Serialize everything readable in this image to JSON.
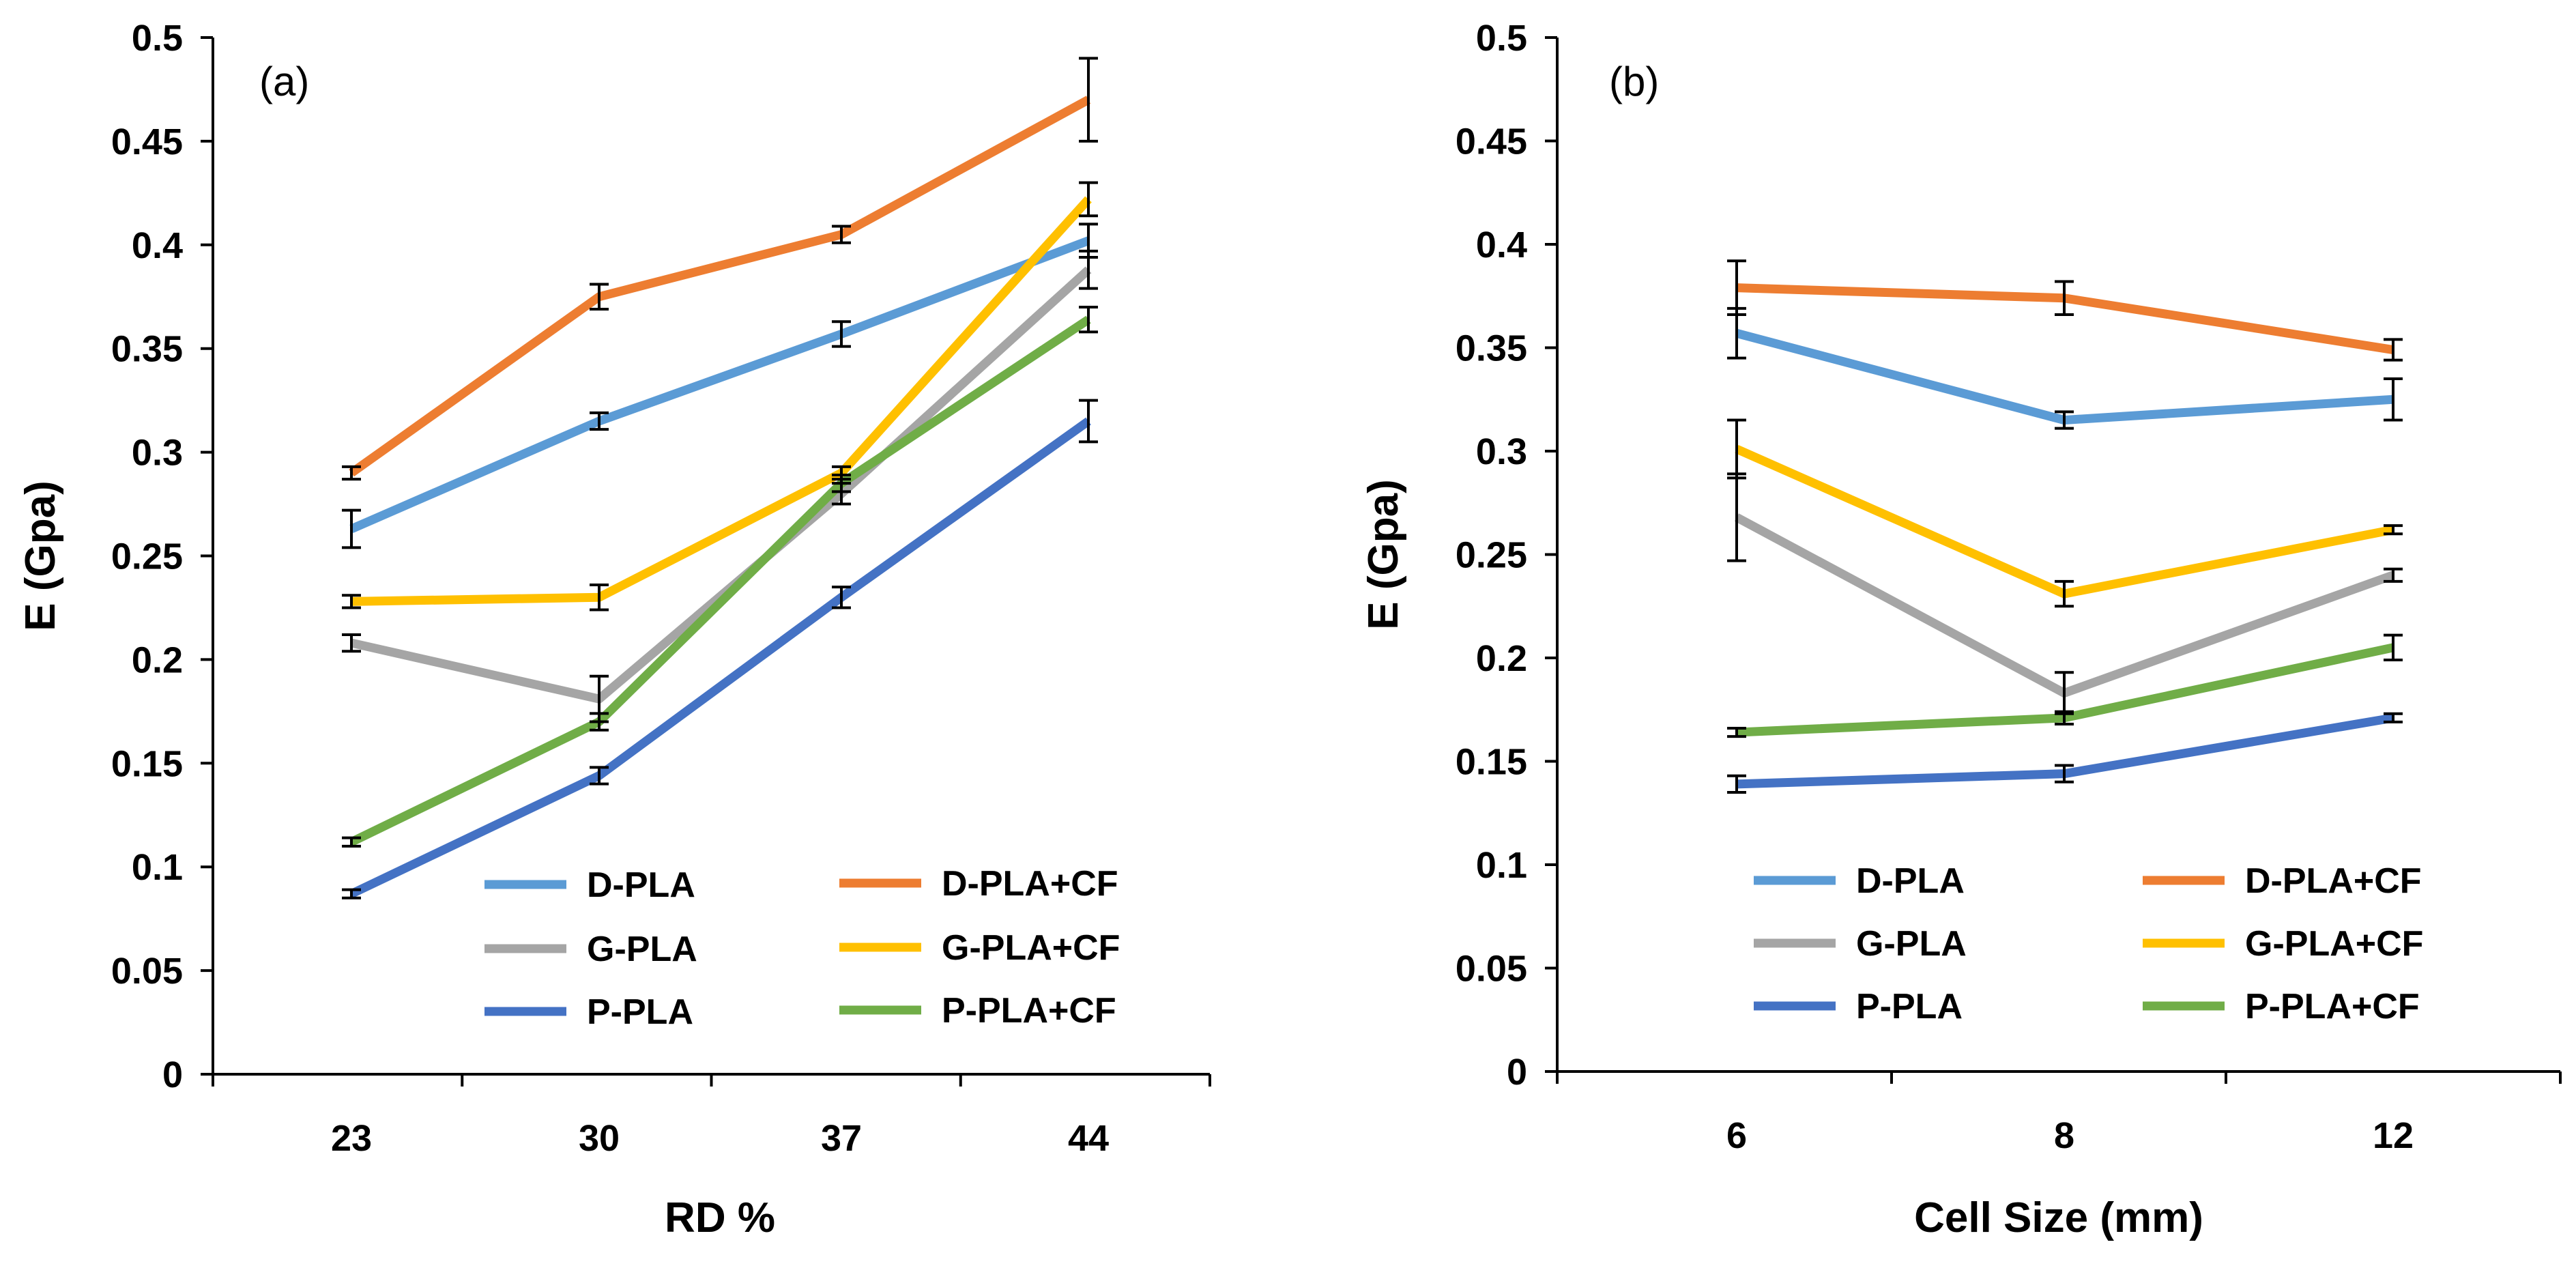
{
  "chart_data": [
    {
      "type": "line",
      "panel_label": "(a)",
      "xlabel": "RD %",
      "ylabel": "E (Gpa)",
      "categories": [
        "23",
        "30",
        "37",
        "44"
      ],
      "ylim": [
        0,
        0.5
      ],
      "yticks": [
        "0",
        "0.05",
        "0.1",
        "0.15",
        "0.2",
        "0.25",
        "0.3",
        "0.35",
        "0.4",
        "0.45",
        "0.5"
      ],
      "legend_position": "bottom-right",
      "series": [
        {
          "name": "D-PLA",
          "color": "#5B9BD5",
          "values": [
            0.263,
            0.315,
            0.357,
            0.402
          ],
          "errors": [
            0.009,
            0.004,
            0.006,
            0.008
          ]
        },
        {
          "name": "D-PLA+CF",
          "color": "#ED7D31",
          "values": [
            0.29,
            0.375,
            0.405,
            0.47
          ],
          "errors": [
            0.003,
            0.006,
            0.004,
            0.02
          ]
        },
        {
          "name": "G-PLA",
          "color": "#A5A5A5",
          "values": [
            0.208,
            0.181,
            0.28,
            0.388
          ],
          "errors": [
            0.004,
            0.011,
            0.005,
            0.009
          ]
        },
        {
          "name": "G-PLA+CF",
          "color": "#FFC000",
          "values": [
            0.228,
            0.23,
            0.29,
            0.422
          ],
          "errors": [
            0.003,
            0.006,
            0.003,
            0.008
          ]
        },
        {
          "name": "P-PLA",
          "color": "#4472C4",
          "values": [
            0.087,
            0.144,
            0.23,
            0.315
          ],
          "errors": [
            0.002,
            0.004,
            0.005,
            0.01
          ]
        },
        {
          "name": "P-PLA+CF",
          "color": "#70AD47",
          "values": [
            0.112,
            0.17,
            0.285,
            0.364
          ],
          "errors": [
            0.002,
            0.004,
            0.004,
            0.006
          ]
        }
      ]
    },
    {
      "type": "line",
      "panel_label": "(b)",
      "xlabel": "Cell Size (mm)",
      "ylabel": "E (Gpa)",
      "categories": [
        "6",
        "8",
        "12"
      ],
      "ylim": [
        0,
        0.5
      ],
      "yticks": [
        "0",
        "0.05",
        "0.1",
        "0.15",
        "0.2",
        "0.25",
        "0.3",
        "0.35",
        "0.4",
        "0.45",
        "0.5"
      ],
      "legend_position": "bottom",
      "series": [
        {
          "name": "D-PLA",
          "color": "#5B9BD5",
          "values": [
            0.357,
            0.315,
            0.325
          ],
          "errors": [
            0.012,
            0.004,
            0.01
          ]
        },
        {
          "name": "D-PLA+CF",
          "color": "#ED7D31",
          "values": [
            0.379,
            0.374,
            0.349
          ],
          "errors": [
            0.013,
            0.008,
            0.005
          ]
        },
        {
          "name": "G-PLA",
          "color": "#A5A5A5",
          "values": [
            0.268,
            0.183,
            0.24
          ],
          "errors": [
            0.021,
            0.01,
            0.003
          ]
        },
        {
          "name": "G-PLA+CF",
          "color": "#FFC000",
          "values": [
            0.301,
            0.231,
            0.262
          ],
          "errors": [
            0.014,
            0.006,
            0.002
          ]
        },
        {
          "name": "P-PLA",
          "color": "#4472C4",
          "values": [
            0.139,
            0.144,
            0.171
          ],
          "errors": [
            0.004,
            0.004,
            0.002
          ]
        },
        {
          "name": "P-PLA+CF",
          "color": "#70AD47",
          "values": [
            0.164,
            0.171,
            0.205
          ],
          "errors": [
            0.002,
            0.003,
            0.006
          ]
        }
      ]
    }
  ]
}
